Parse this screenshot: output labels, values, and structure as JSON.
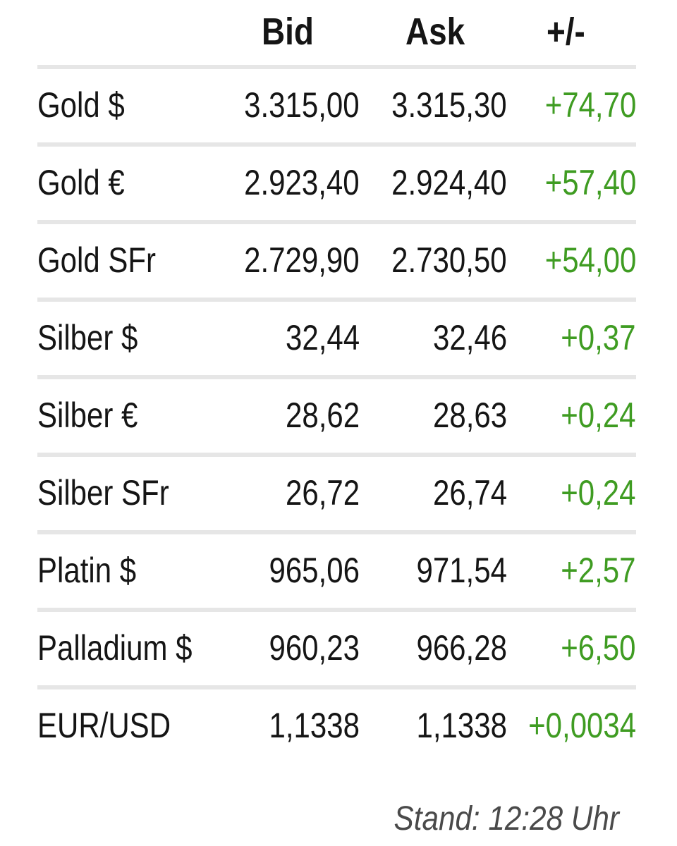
{
  "header": {
    "bid_label": "Bid",
    "ask_label": "Ask",
    "change_label": "+/-"
  },
  "rows": [
    {
      "name": "Gold $",
      "bid": "3.315,00",
      "ask": "3.315,30",
      "change": "+74,70"
    },
    {
      "name": "Gold €",
      "bid": "2.923,40",
      "ask": "2.924,40",
      "change": "+57,40"
    },
    {
      "name": "Gold SFr",
      "bid": "2.729,90",
      "ask": "2.730,50",
      "change": "+54,00"
    },
    {
      "name": "Silber $",
      "bid": "32,44",
      "ask": "32,46",
      "change": "+0,37"
    },
    {
      "name": "Silber €",
      "bid": "28,62",
      "ask": "28,63",
      "change": "+0,24"
    },
    {
      "name": "Silber SFr",
      "bid": "26,72",
      "ask": "26,74",
      "change": "+0,24"
    },
    {
      "name": "Platin $",
      "bid": "965,06",
      "ask": "971,54",
      "change": "+2,57"
    },
    {
      "name": "Palladium $",
      "bid": "960,23",
      "ask": "966,28",
      "change": "+6,50"
    },
    {
      "name": "EUR/USD",
      "bid": "1,1338",
      "ask": "1,1338",
      "change": "+0,0034"
    }
  ],
  "footer": {
    "timestamp": "Stand: 12:28 Uhr"
  },
  "colors": {
    "positive_change": "#3f9c22",
    "separator": "#e6e6e6",
    "text": "#151515"
  }
}
